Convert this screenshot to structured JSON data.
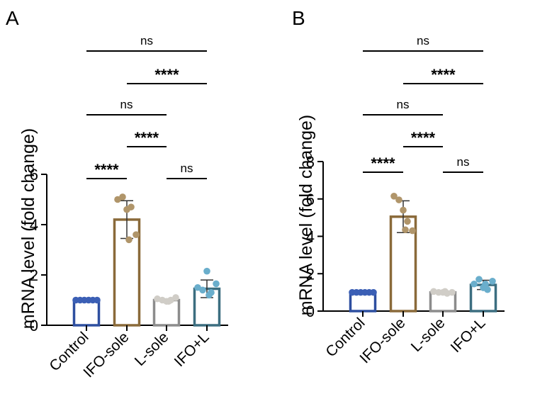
{
  "chart_data": [
    {
      "type": "bar",
      "panel_label": "A",
      "categories": [
        "Control",
        "IFO-sole",
        "L-sole",
        "IFO+L"
      ],
      "values": [
        1.0,
        4.2,
        1.0,
        1.45
      ],
      "errors": [
        0.0,
        0.75,
        0.05,
        0.35
      ],
      "points": [
        [
          1.0,
          1.0,
          1.0,
          1.0,
          1.0,
          1.0
        ],
        [
          5.0,
          5.1,
          4.6,
          4.7,
          3.6,
          3.4
        ],
        [
          1.05,
          1.0,
          0.95,
          1.0,
          1.1,
          0.95
        ],
        [
          1.5,
          1.4,
          2.15,
          1.3,
          1.65,
          1.2
        ]
      ],
      "colors": [
        "#2e4fa0",
        "#8a6a3a",
        "#8c8c8c",
        "#3c6e80"
      ],
      "point_colors": [
        "#3b5fb5",
        "#b0956a",
        "#d0cdc7",
        "#6aaecc"
      ],
      "ylabel": "mRNA level (fold change)",
      "xlabel": "",
      "ylim": [
        0,
        6
      ],
      "yticks": [
        0,
        2,
        4,
        6
      ],
      "comparisons": [
        {
          "from": 0,
          "to": 3,
          "label": "ns"
        },
        {
          "from": 1,
          "to": 3,
          "label": "****"
        },
        {
          "from": 0,
          "to": 2,
          "label": "ns"
        },
        {
          "from": 1,
          "to": 2,
          "label": "****"
        },
        {
          "from": 0,
          "to": 1,
          "label": "****"
        },
        {
          "from": 2,
          "to": 3,
          "label": "ns"
        }
      ]
    },
    {
      "type": "bar",
      "panel_label": "B",
      "categories": [
        "Control",
        "IFO-sole",
        "L-sole",
        "IFO+L"
      ],
      "values": [
        1.0,
        5.05,
        1.0,
        1.4
      ],
      "errors": [
        0.0,
        0.85,
        0.05,
        0.25
      ],
      "points": [
        [
          1.0,
          1.0,
          1.0,
          1.0,
          1.0,
          1.0
        ],
        [
          6.15,
          5.95,
          5.4,
          4.8,
          4.3,
          4.35
        ],
        [
          1.05,
          1.0,
          1.0,
          0.95,
          1.0,
          1.05
        ],
        [
          1.45,
          1.7,
          1.25,
          1.15,
          1.6,
          1.45
        ]
      ],
      "colors": [
        "#2e4fa0",
        "#8a6a3a",
        "#8c8c8c",
        "#3c6e80"
      ],
      "point_colors": [
        "#3b5fb5",
        "#b0956a",
        "#d0cdc7",
        "#6aaecc"
      ],
      "ylabel": "mRNA level (fold change)",
      "xlabel": "",
      "ylim": [
        0,
        8
      ],
      "yticks": [
        0,
        2,
        4,
        6,
        8
      ],
      "comparisons": [
        {
          "from": 0,
          "to": 3,
          "label": "ns"
        },
        {
          "from": 1,
          "to": 3,
          "label": "****"
        },
        {
          "from": 0,
          "to": 2,
          "label": "ns"
        },
        {
          "from": 1,
          "to": 2,
          "label": "****"
        },
        {
          "from": 0,
          "to": 1,
          "label": "****"
        },
        {
          "from": 2,
          "to": 3,
          "label": "ns"
        }
      ]
    }
  ]
}
